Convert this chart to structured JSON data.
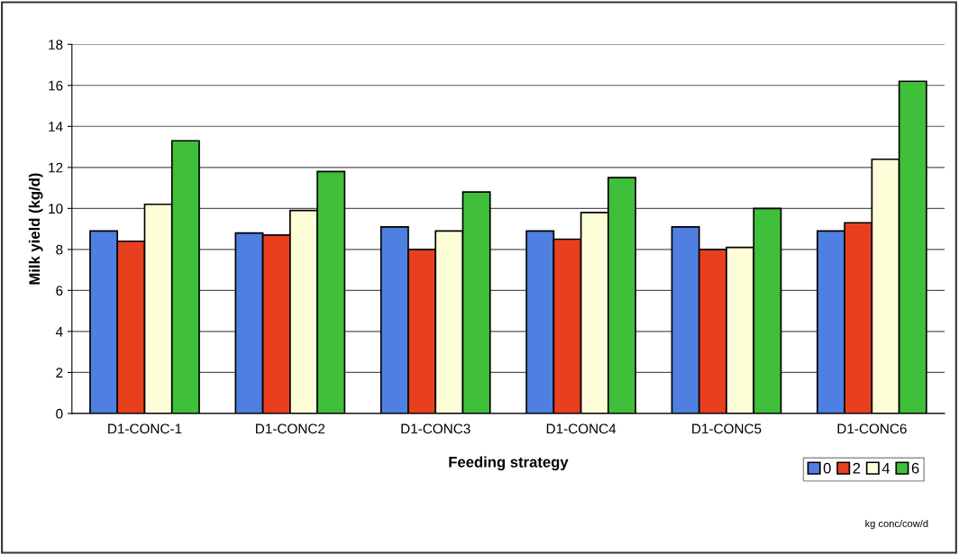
{
  "chart_data": {
    "type": "bar",
    "xlabel": "Feeding strategy",
    "ylabel": "Milk yield (kg/d)",
    "legend_title": "kg conc/cow/d",
    "categories": [
      "D1-CONC-1",
      "D1-CONC2",
      "D1-CONC3",
      "D1-CONC4",
      "D1-CONC5",
      "D1-CONC6"
    ],
    "series": [
      {
        "name": "0",
        "color": "#4f7fe0",
        "values": [
          8.9,
          8.8,
          9.1,
          8.9,
          9.1,
          8.9
        ]
      },
      {
        "name": "2",
        "color": "#e8401f",
        "values": [
          8.4,
          8.7,
          8.0,
          8.5,
          8.0,
          9.3
        ]
      },
      {
        "name": "4",
        "color": "#fdfdd8",
        "values": [
          10.2,
          9.9,
          8.9,
          9.8,
          8.1,
          12.4
        ]
      },
      {
        "name": "6",
        "color": "#3fbf3a",
        "values": [
          13.3,
          11.8,
          10.8,
          11.5,
          10.0,
          16.2
        ]
      }
    ],
    "ylim": [
      0,
      18
    ],
    "yticks": [
      0,
      2,
      4,
      6,
      8,
      10,
      12,
      14,
      16,
      18
    ],
    "grid": "y",
    "legend": "bottom right"
  }
}
